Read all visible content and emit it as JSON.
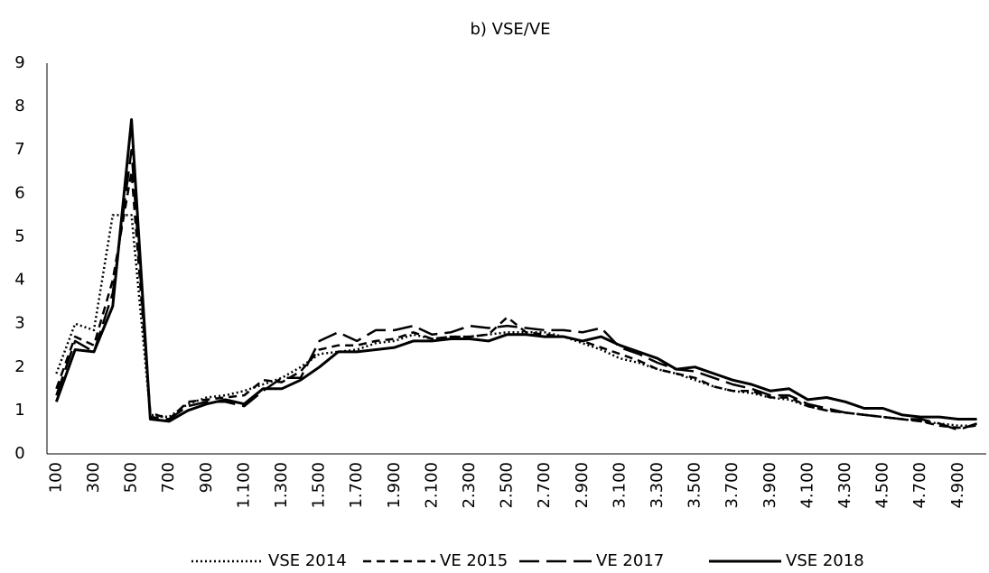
{
  "chart_data": {
    "type": "line",
    "title": "b) VSE/VE",
    "categories": [
      "100",
      null,
      "300",
      null,
      "500",
      null,
      "700",
      null,
      "900",
      null,
      "1.100",
      null,
      "1.300",
      null,
      "1.500",
      null,
      "1.700",
      null,
      "1.900",
      null,
      "2.100",
      null,
      "2.300",
      null,
      "2.500",
      null,
      "2.700",
      null,
      "2.900",
      null,
      "3.100",
      null,
      "3.300",
      null,
      "3.500",
      null,
      "3.700",
      null,
      "3.900",
      null,
      "4.100",
      null,
      "4.300",
      null,
      "4.500",
      null,
      "4.700",
      null,
      "4.900",
      null
    ],
    "series": [
      {
        "name": "VSE 2014",
        "color": "#000000",
        "dash": "dotted",
        "values": [
          1.85,
          3.0,
          2.85,
          5.5,
          5.5,
          0.9,
          0.85,
          1.15,
          1.3,
          1.35,
          1.45,
          1.6,
          1.75,
          2.0,
          2.3,
          2.35,
          2.4,
          2.55,
          2.6,
          2.75,
          2.65,
          2.7,
          2.7,
          2.75,
          2.8,
          2.8,
          2.8,
          2.7,
          2.55,
          2.4,
          2.2,
          2.1,
          1.95,
          1.85,
          1.7,
          1.55,
          1.45,
          1.4,
          1.3,
          1.25,
          1.1,
          1.0,
          0.95,
          0.9,
          0.85,
          0.8,
          0.75,
          0.7,
          0.65,
          0.65
        ]
      },
      {
        "name": "VE 2015",
        "color": "#000000",
        "dash": "dashed",
        "values": [
          1.5,
          2.7,
          2.5,
          4.0,
          6.5,
          0.95,
          0.8,
          1.2,
          1.25,
          1.3,
          1.35,
          1.7,
          1.65,
          1.9,
          2.4,
          2.5,
          2.5,
          2.6,
          2.65,
          2.8,
          2.65,
          2.7,
          2.7,
          2.75,
          3.15,
          2.8,
          2.75,
          2.7,
          2.6,
          2.45,
          2.3,
          2.15,
          1.95,
          1.85,
          1.75,
          1.55,
          1.45,
          1.45,
          1.3,
          1.3,
          1.1,
          1.0,
          0.95,
          0.9,
          0.85,
          0.8,
          0.75,
          0.65,
          0.6,
          0.65
        ]
      },
      {
        "name": "VE 2017",
        "color": "#000000",
        "dash": "long-dash",
        "values": [
          1.35,
          2.6,
          2.35,
          3.7,
          7.0,
          0.85,
          0.8,
          1.1,
          1.2,
          1.2,
          1.1,
          1.45,
          1.75,
          1.75,
          2.6,
          2.8,
          2.6,
          2.85,
          2.85,
          2.95,
          2.75,
          2.8,
          2.95,
          2.9,
          2.95,
          2.9,
          2.85,
          2.85,
          2.8,
          2.9,
          2.45,
          2.3,
          2.1,
          1.95,
          1.9,
          1.75,
          1.6,
          1.5,
          1.35,
          1.35,
          1.15,
          1.05,
          0.95,
          0.9,
          0.85,
          0.8,
          0.8,
          0.7,
          0.55,
          0.7
        ]
      },
      {
        "name": "VSE 2018",
        "color": "#000000",
        "dash": "solid",
        "values": [
          1.2,
          2.4,
          2.35,
          3.4,
          7.7,
          0.8,
          0.75,
          1.0,
          1.15,
          1.25,
          1.15,
          1.5,
          1.5,
          1.7,
          2.0,
          2.35,
          2.35,
          2.4,
          2.45,
          2.6,
          2.6,
          2.65,
          2.65,
          2.6,
          2.75,
          2.75,
          2.7,
          2.7,
          2.6,
          2.7,
          2.5,
          2.35,
          2.2,
          1.95,
          2.0,
          1.85,
          1.7,
          1.6,
          1.45,
          1.5,
          1.25,
          1.3,
          1.2,
          1.05,
          1.05,
          0.9,
          0.85,
          0.85,
          0.8,
          0.8
        ]
      }
    ],
    "ylim": [
      0,
      9
    ],
    "yticks": [
      0,
      1,
      2,
      3,
      4,
      5,
      6,
      7,
      8,
      9
    ],
    "grid": false,
    "legend": "bottom"
  }
}
